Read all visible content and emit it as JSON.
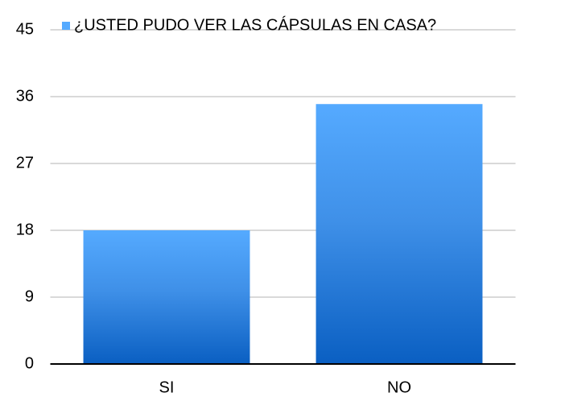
{
  "chart_data": {
    "type": "bar",
    "categories": [
      "SI",
      "NO"
    ],
    "series": [
      {
        "name": "¿USTED PUDO VER LAS CÁPSULAS EN CASA?",
        "color": "#55aaff",
        "values": [
          18,
          35
        ]
      }
    ],
    "ylim": [
      0,
      45
    ],
    "yticks": [
      0,
      9,
      18,
      27,
      36,
      45
    ],
    "grid": true,
    "legend": "top"
  }
}
